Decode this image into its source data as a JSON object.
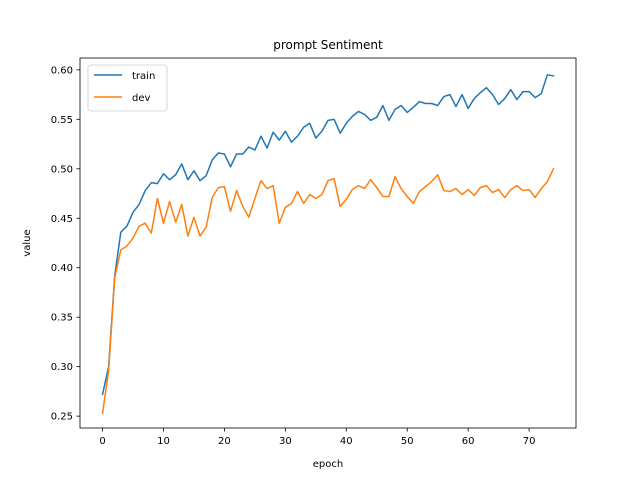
{
  "chart_data": {
    "type": "line",
    "title": "prompt Sentiment",
    "xlabel": "epoch",
    "ylabel": "value",
    "xlim": [
      -3.7,
      77.7
    ],
    "ylim": [
      0.238,
      0.612
    ],
    "xticks": [
      0,
      10,
      20,
      30,
      40,
      50,
      60,
      70
    ],
    "yticks": [
      0.25,
      0.3,
      0.35,
      0.4,
      0.45,
      0.5,
      0.55,
      0.6
    ],
    "grid": false,
    "legend": "top-left",
    "x": [
      0,
      1,
      2,
      3,
      4,
      5,
      6,
      7,
      8,
      9,
      10,
      11,
      12,
      13,
      14,
      15,
      16,
      17,
      18,
      19,
      20,
      21,
      22,
      23,
      24,
      25,
      26,
      27,
      28,
      29,
      30,
      31,
      32,
      33,
      34,
      35,
      36,
      37,
      38,
      39,
      40,
      41,
      42,
      43,
      44,
      45,
      46,
      47,
      48,
      49,
      50,
      51,
      52,
      53,
      54,
      55,
      56,
      57,
      58,
      59,
      60,
      61,
      62,
      63,
      64,
      65,
      66,
      67,
      68,
      69,
      70,
      71,
      72,
      73,
      74
    ],
    "series": [
      {
        "name": "train",
        "color": "#1f77b4",
        "values": [
          0.272,
          0.3,
          0.392,
          0.436,
          0.442,
          0.456,
          0.464,
          0.478,
          0.486,
          0.485,
          0.495,
          0.489,
          0.494,
          0.505,
          0.489,
          0.498,
          0.488,
          0.493,
          0.509,
          0.516,
          0.515,
          0.502,
          0.515,
          0.515,
          0.522,
          0.519,
          0.533,
          0.521,
          0.537,
          0.529,
          0.538,
          0.527,
          0.533,
          0.542,
          0.546,
          0.531,
          0.538,
          0.549,
          0.55,
          0.536,
          0.546,
          0.553,
          0.558,
          0.555,
          0.549,
          0.552,
          0.564,
          0.549,
          0.56,
          0.564,
          0.557,
          0.562,
          0.568,
          0.566,
          0.566,
          0.564,
          0.573,
          0.575,
          0.563,
          0.575,
          0.561,
          0.571,
          0.577,
          0.582,
          0.575,
          0.565,
          0.571,
          0.58,
          0.57,
          0.578,
          0.578,
          0.572,
          0.576,
          0.595,
          0.594
        ]
      },
      {
        "name": "dev",
        "color": "#ff7f0e",
        "values": [
          0.253,
          0.296,
          0.39,
          0.418,
          0.422,
          0.43,
          0.442,
          0.445,
          0.435,
          0.47,
          0.445,
          0.467,
          0.446,
          0.464,
          0.432,
          0.451,
          0.432,
          0.441,
          0.471,
          0.481,
          0.482,
          0.457,
          0.478,
          0.462,
          0.451,
          0.47,
          0.488,
          0.48,
          0.483,
          0.445,
          0.461,
          0.465,
          0.477,
          0.465,
          0.474,
          0.47,
          0.474,
          0.488,
          0.49,
          0.462,
          0.469,
          0.479,
          0.483,
          0.48,
          0.489,
          0.481,
          0.472,
          0.472,
          0.492,
          0.48,
          0.472,
          0.465,
          0.477,
          0.482,
          0.487,
          0.494,
          0.478,
          0.477,
          0.48,
          0.474,
          0.479,
          0.473,
          0.481,
          0.483,
          0.476,
          0.479,
          0.471,
          0.479,
          0.483,
          0.478,
          0.479,
          0.471,
          0.48,
          0.487,
          0.5
        ]
      }
    ]
  }
}
